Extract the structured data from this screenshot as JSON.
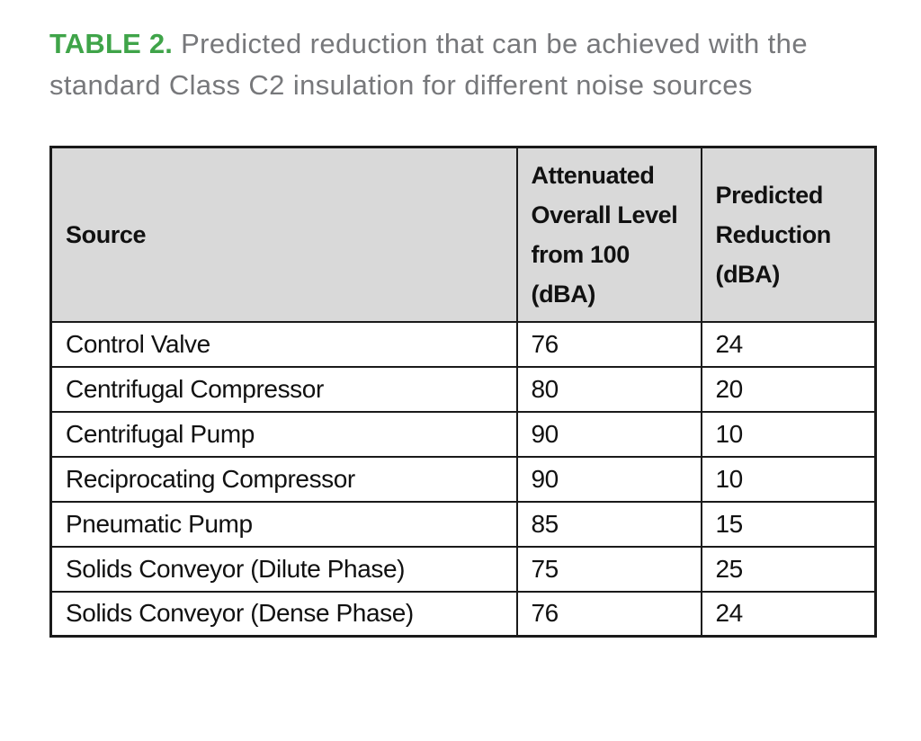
{
  "title": {
    "label": "TABLE 2.",
    "text": " Predicted reduction that can be achieved with the standard Class C2 insulation for different noise sources"
  },
  "table": {
    "headers": [
      "Source",
      "Attenuated Overall Level from 100 (dBA)",
      "Predicted Reduction (dBA)"
    ],
    "rows": [
      {
        "source": "Control Valve",
        "attenuated_level": "76",
        "predicted_reduction": "24"
      },
      {
        "source": "Centrifugal Compressor",
        "attenuated_level": "80",
        "predicted_reduction": "20"
      },
      {
        "source": "Centrifugal Pump",
        "attenuated_level": "90",
        "predicted_reduction": "10"
      },
      {
        "source": "Reciprocating Compressor",
        "attenuated_level": "90",
        "predicted_reduction": "10"
      },
      {
        "source": "Pneumatic Pump",
        "attenuated_level": "85",
        "predicted_reduction": "15"
      },
      {
        "source": "Solids Conveyor (Dilute Phase)",
        "attenuated_level": "75",
        "predicted_reduction": "25"
      },
      {
        "source": "Solids Conveyor (Dense Phase)",
        "attenuated_level": "76",
        "predicted_reduction": "24"
      }
    ]
  },
  "colors": {
    "accent_green": "#3fa449",
    "title_gray": "#77787b",
    "header_bg": "#d9d9d9",
    "border": "#1a1a1a"
  }
}
